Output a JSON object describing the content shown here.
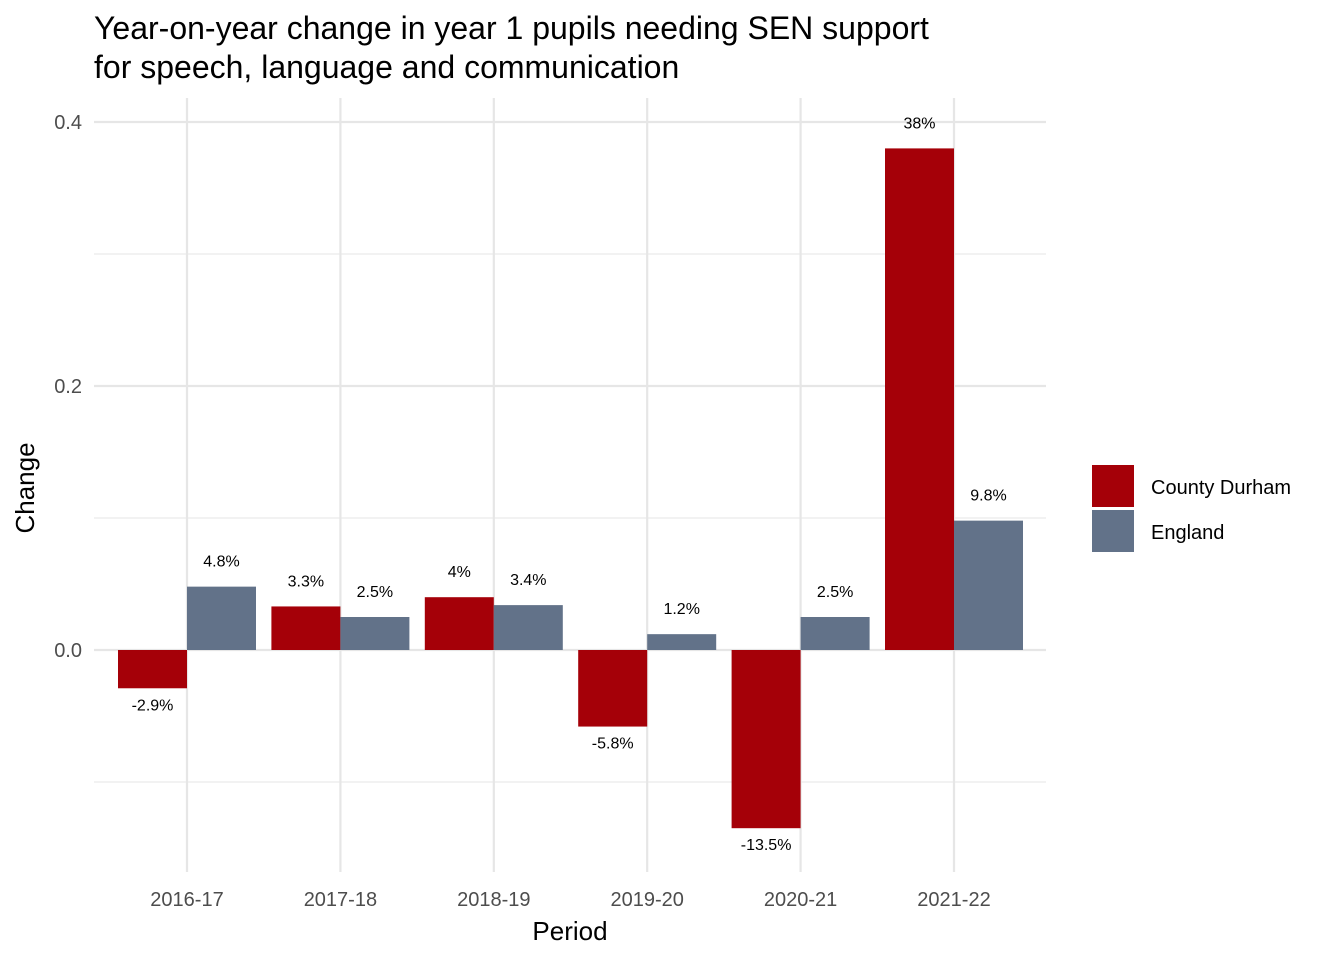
{
  "title_lines": [
    "Year-on-year change in year 1 pupils needing SEN support",
    "for speech, language and communication"
  ],
  "chart_data": {
    "type": "bar",
    "title": "Year-on-year change in year 1 pupils needing SEN support for speech, language and communication",
    "xlabel": "Period",
    "ylabel": "Change",
    "categories": [
      "2016-17",
      "2017-18",
      "2018-19",
      "2019-20",
      "2020-21",
      "2021-22"
    ],
    "series": [
      {
        "name": "County Durham",
        "color": "#a50008",
        "values": [
          -0.029,
          0.033,
          0.04,
          -0.058,
          -0.135,
          0.38
        ],
        "labels": [
          "-2.9%",
          "3.3%",
          "4%",
          "-5.8%",
          "-13.5%",
          "38%"
        ]
      },
      {
        "name": "England",
        "color": "#627289",
        "values": [
          0.048,
          0.025,
          0.034,
          0.012,
          0.025,
          0.098
        ],
        "labels": [
          "4.8%",
          "2.5%",
          "3.4%",
          "1.2%",
          "2.5%",
          "9.8%"
        ]
      }
    ],
    "yticks": [
      0.0,
      0.2,
      0.4
    ],
    "ytick_labels": [
      "0.0",
      "0.2",
      "0.4"
    ],
    "ylim": [
      -0.17,
      0.42
    ],
    "grid": true,
    "legend_position": "right"
  }
}
